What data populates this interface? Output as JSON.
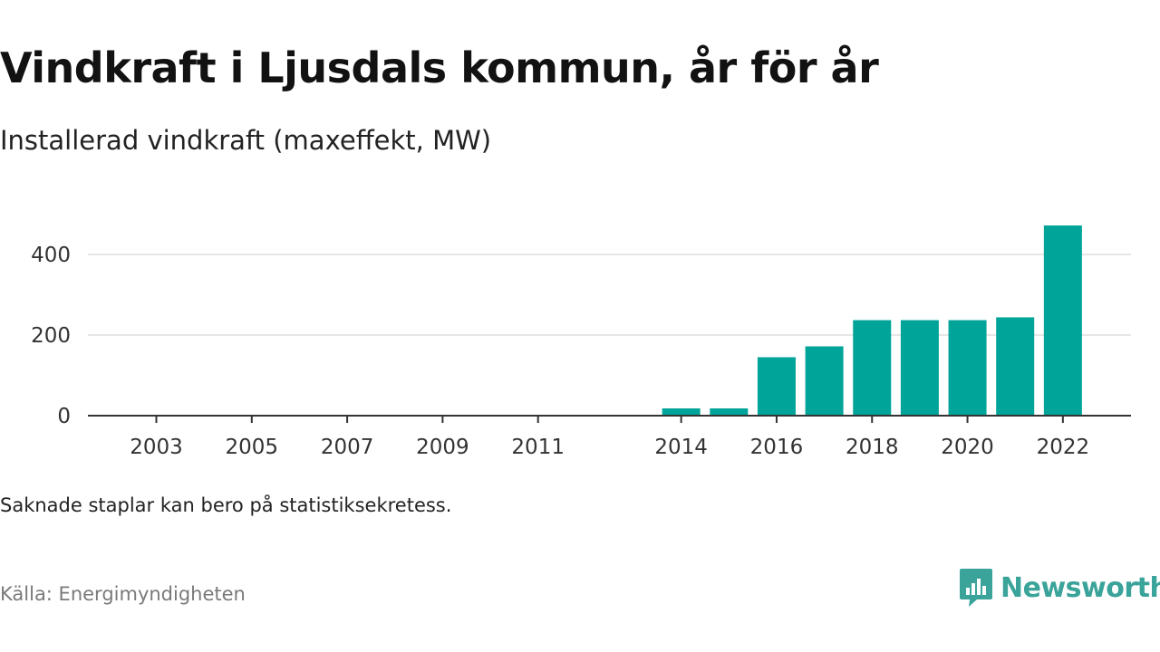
{
  "header": {
    "title": "Vindkraft i Ljusdals kommun, år för år",
    "subtitle": "Installerad vindkraft (maxeffekt, MW)"
  },
  "footer": {
    "note": "Saknade staplar kan bero på statistiksekretess.",
    "source": "Källa: Energimyndigheten",
    "brand": "Newsworthy",
    "brand_icon": "newsworthy-logo-icon"
  },
  "colors": {
    "bar": "#00a499",
    "grid": "#dddddd",
    "axis": "#333333",
    "brand": "#3aa39a"
  },
  "chart_data": {
    "type": "bar",
    "title": "Vindkraft i Ljusdals kommun, år för år",
    "subtitle": "Installerad vindkraft (maxeffekt, MW)",
    "x": [
      2003,
      2004,
      2005,
      2006,
      2007,
      2008,
      2009,
      2010,
      2011,
      2012,
      2013,
      2014,
      2015,
      2016,
      2017,
      2018,
      2019,
      2020,
      2021,
      2022
    ],
    "values": [
      0,
      0,
      0,
      0,
      0,
      0,
      0,
      0,
      0,
      null,
      null,
      18,
      18,
      145,
      172,
      237,
      237,
      237,
      244,
      472
    ],
    "x_tick_labels": [
      "2003",
      "2005",
      "2007",
      "2009",
      "2011",
      "2014",
      "2016",
      "2018",
      "2020",
      "2022"
    ],
    "y_ticks": [
      0,
      200,
      400
    ],
    "ylim": [
      0,
      480
    ],
    "grid": true,
    "legend": "none",
    "xlabel": "",
    "ylabel": ""
  }
}
